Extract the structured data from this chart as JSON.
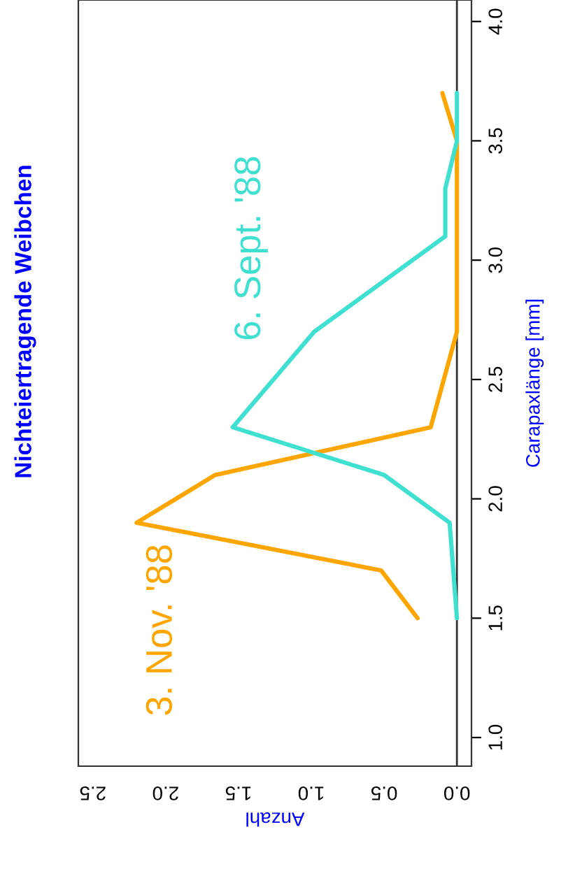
{
  "chart_data": {
    "type": "line",
    "orientation": "horizontal",
    "title": "Nichteiertragende Weibchen",
    "xlabel": "Anzahl",
    "ylabel": "Carapaxlänge [mm]",
    "xlim": [
      2.6,
      -0.1
    ],
    "xticks": [
      {
        "value": 0,
        "label": "0.0"
      },
      0.5,
      {
        "value": 1,
        "label": "1.0"
      },
      1.5,
      {
        "value": 2,
        "label": "2.0"
      },
      2.5
    ],
    "ylim": [
      0.88,
      4.09
    ],
    "yticks": [
      {
        "value": 1,
        "label": "1.0"
      },
      1.5,
      {
        "value": 2,
        "label": "2.0"
      },
      2.5,
      {
        "value": 3,
        "label": "3.0"
      },
      3.5,
      {
        "value": 4,
        "label": "4.0"
      }
    ],
    "series": [
      {
        "name": "3. Nov. '88",
        "color": "#ffa500",
        "x": [
          1.5,
          1.7,
          1.9,
          2.1,
          2.3,
          2.7,
          3.5,
          3.7
        ],
        "values": [
          0.27,
          0.52,
          2.2,
          1.66,
          0.18,
          0.0,
          0.0,
          0.1
        ]
      },
      {
        "name": "6. Sept. '88",
        "color": "#40e0d0",
        "x": [
          1.5,
          1.9,
          2.1,
          2.3,
          2.7,
          3.1,
          3.3,
          3.5,
          3.7
        ],
        "values": [
          0.0,
          0.05,
          0.5,
          1.54,
          0.98,
          0.08,
          0.08,
          0.0,
          0.0
        ]
      }
    ],
    "ref_lines": [
      {
        "axis": "x",
        "value": 0.0,
        "color": "#333333"
      }
    ],
    "grid": false,
    "legend": false
  }
}
